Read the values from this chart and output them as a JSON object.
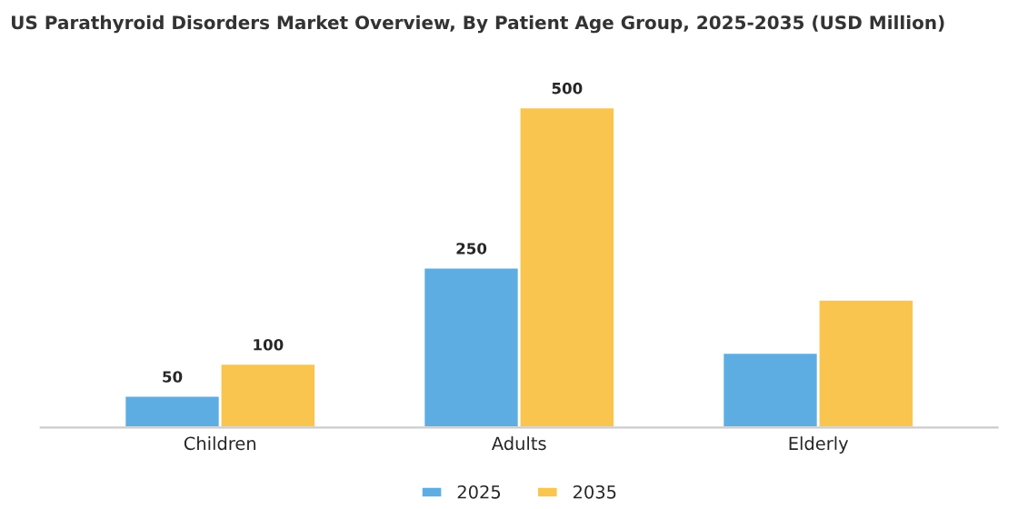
{
  "chart_data": {
    "type": "bar",
    "title": "US Parathyroid Disorders Market Overview, By Patient Age Group, 2025-2035 (USD Million)",
    "categories": [
      "Children",
      "Adults",
      "Elderly"
    ],
    "series": [
      {
        "name": "2025",
        "color": "#5dade2",
        "values": [
          50,
          250,
          117
        ],
        "value_labels": [
          "50",
          "250",
          null
        ]
      },
      {
        "name": "2035",
        "color": "#f9c54e",
        "values": [
          100,
          500,
          200
        ],
        "value_labels": [
          "100",
          "500",
          null
        ]
      }
    ],
    "legend": "bottom",
    "grid": false,
    "tick_labels": "x"
  }
}
